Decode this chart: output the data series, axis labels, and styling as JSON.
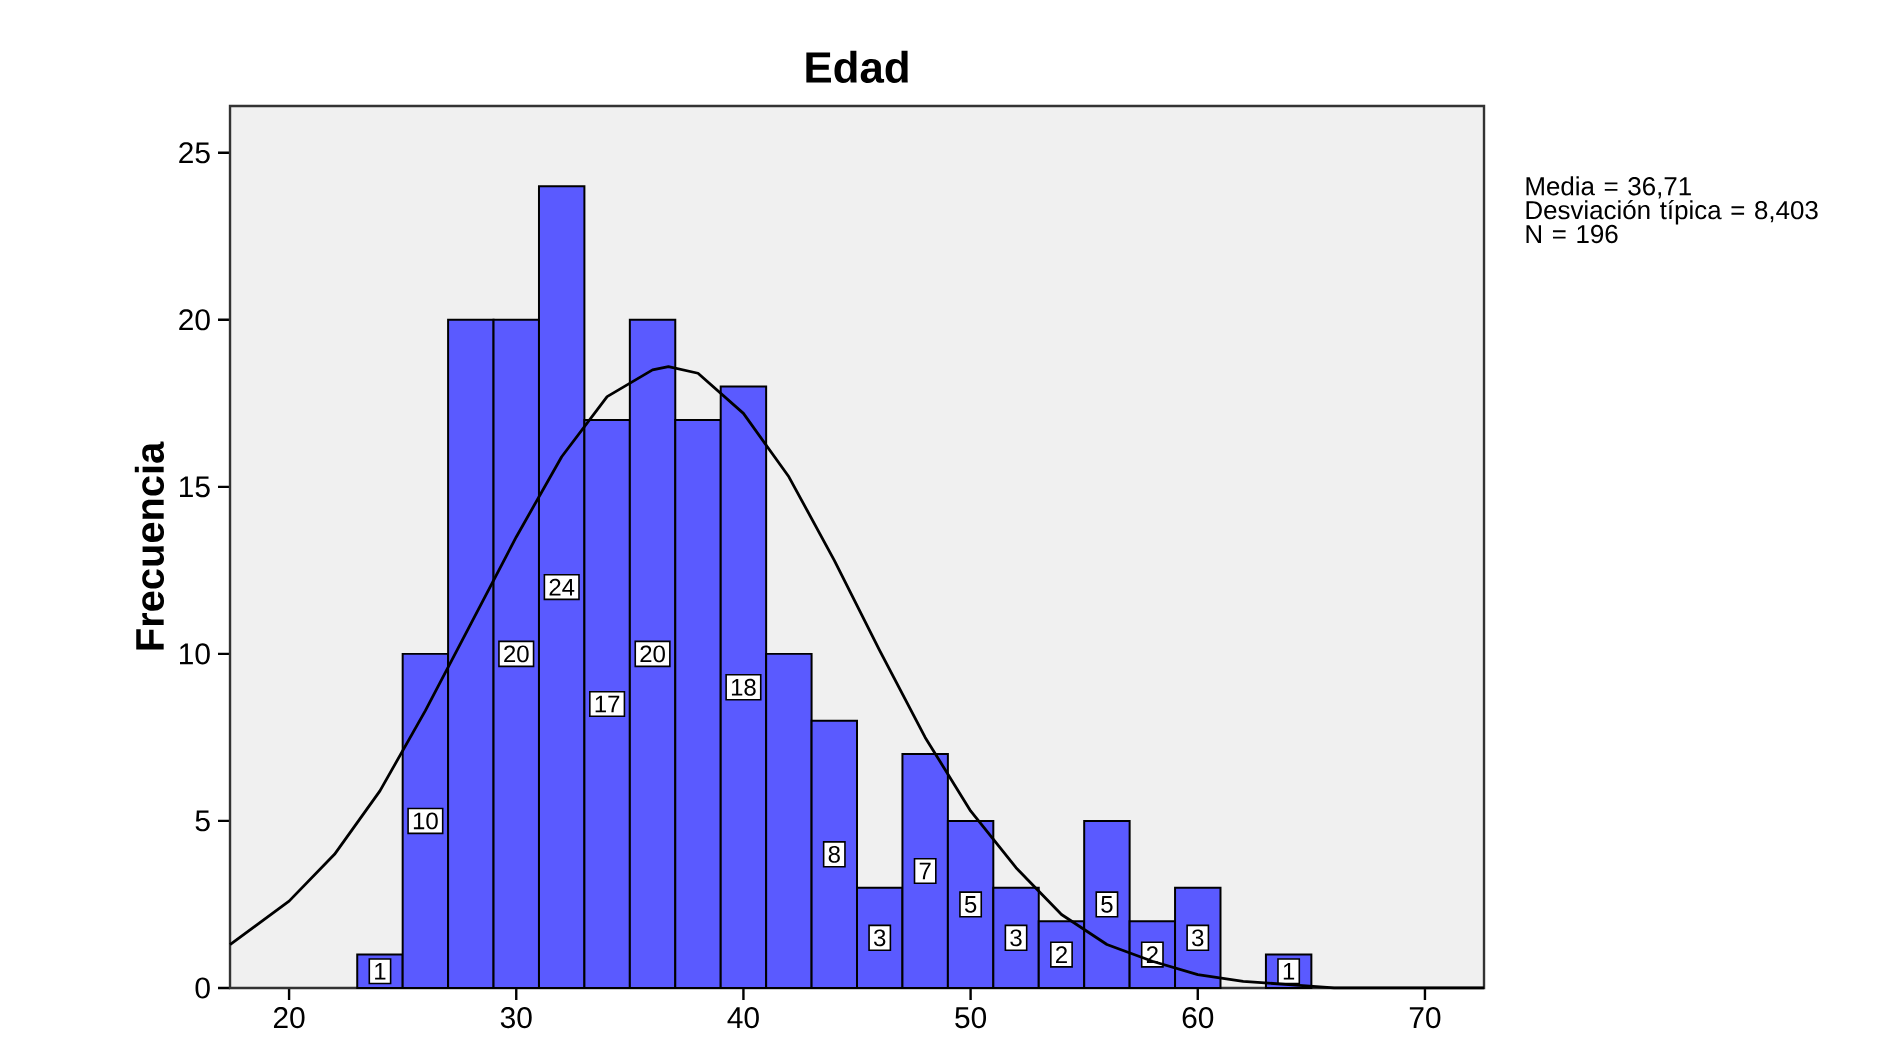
{
  "chart_data": {
    "type": "histogram",
    "title": "Edad",
    "ylabel": "Frecuencia",
    "bins": [
      23,
      25,
      27,
      29,
      31,
      33,
      35,
      37,
      39,
      41,
      43,
      45,
      47,
      49,
      51,
      53,
      55,
      57,
      59,
      61,
      63,
      65
    ],
    "values": [
      1,
      10,
      20,
      20,
      24,
      17,
      20,
      17,
      18,
      10,
      8,
      3,
      7,
      5,
      3,
      2,
      5,
      2,
      3,
      0,
      1
    ],
    "value_labels": [
      "1",
      "10",
      null,
      "20",
      "24",
      "17",
      "20",
      null,
      "18",
      null,
      "8",
      "3",
      "7",
      "5",
      "3",
      "2",
      "5",
      "2",
      "3",
      null,
      "1"
    ],
    "color": "#5a5aff",
    "series": [
      {
        "type": "line",
        "color": "#000000",
        "x": [
          17.4,
          20,
          22,
          24,
          26,
          28,
          30,
          32,
          34,
          36,
          36.7,
          38,
          40,
          42,
          44,
          46,
          48,
          50,
          52,
          54,
          56,
          58,
          60,
          62,
          64,
          66,
          68,
          70,
          72.6
        ],
        "values": [
          1.3,
          2.6,
          4.0,
          5.9,
          8.3,
          10.9,
          13.5,
          15.9,
          17.7,
          18.5,
          18.6,
          18.4,
          17.2,
          15.3,
          12.8,
          10.1,
          7.5,
          5.3,
          3.6,
          2.2,
          1.3,
          0.8,
          0.4,
          0.2,
          0.1,
          0,
          0,
          0,
          0
        ]
      }
    ],
    "xlim": [
      17.4,
      72.6
    ],
    "xticks": [
      20,
      30,
      40,
      50,
      60,
      70
    ],
    "ylim": [
      0,
      26.4
    ],
    "yticks": [
      0,
      5,
      10,
      15,
      20,
      25
    ],
    "grid": false,
    "marker": "none",
    "line_style": "solid",
    "annotations": [
      "Media = 36,71",
      "Desviación típica = 8,403",
      "N = 196"
    ]
  }
}
